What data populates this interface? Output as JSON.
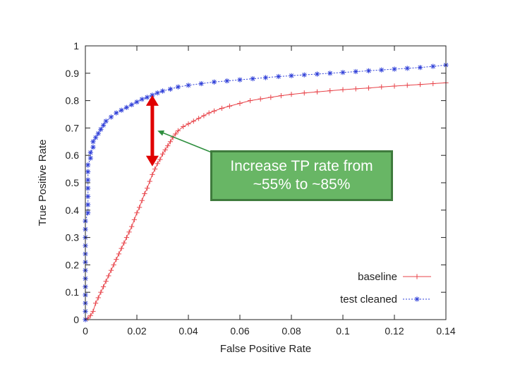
{
  "chart_data": {
    "type": "line",
    "xlabel": "False Positive Rate",
    "ylabel": "True Positive Rate",
    "xlim": [
      0,
      0.14
    ],
    "ylim": [
      0,
      1
    ],
    "xticks": [
      "0",
      "0.02",
      "0.04",
      "0.06",
      "0.08",
      "0.1",
      "0.12",
      "0.14"
    ],
    "yticks": [
      "0",
      "0.1",
      "0.2",
      "0.3",
      "0.4",
      "0.5",
      "0.6",
      "0.7",
      "0.8",
      "0.9",
      "1"
    ],
    "grid": false,
    "legend_position": "bottom-right",
    "series": [
      {
        "name": "baseline",
        "color": "#e8444a",
        "marker": "plus",
        "line": "solid",
        "points": [
          [
            0,
            0
          ],
          [
            0.001,
            0.005
          ],
          [
            0.002,
            0.015
          ],
          [
            0.003,
            0.03
          ],
          [
            0.004,
            0.06
          ],
          [
            0.005,
            0.08
          ],
          [
            0.006,
            0.1
          ],
          [
            0.007,
            0.12
          ],
          [
            0.008,
            0.14
          ],
          [
            0.009,
            0.16
          ],
          [
            0.01,
            0.18
          ],
          [
            0.011,
            0.2
          ],
          [
            0.012,
            0.22
          ],
          [
            0.013,
            0.24
          ],
          [
            0.014,
            0.26
          ],
          [
            0.015,
            0.28
          ],
          [
            0.016,
            0.3
          ],
          [
            0.017,
            0.32
          ],
          [
            0.018,
            0.34
          ],
          [
            0.019,
            0.365
          ],
          [
            0.02,
            0.39
          ],
          [
            0.021,
            0.41
          ],
          [
            0.022,
            0.435
          ],
          [
            0.023,
            0.46
          ],
          [
            0.024,
            0.48
          ],
          [
            0.025,
            0.505
          ],
          [
            0.026,
            0.53
          ],
          [
            0.027,
            0.55
          ],
          [
            0.028,
            0.57
          ],
          [
            0.029,
            0.585
          ],
          [
            0.03,
            0.605
          ],
          [
            0.031,
            0.62
          ],
          [
            0.032,
            0.635
          ],
          [
            0.033,
            0.65
          ],
          [
            0.034,
            0.665
          ],
          [
            0.035,
            0.678
          ],
          [
            0.036,
            0.69
          ],
          [
            0.038,
            0.705
          ],
          [
            0.04,
            0.715
          ],
          [
            0.042,
            0.725
          ],
          [
            0.044,
            0.735
          ],
          [
            0.046,
            0.745
          ],
          [
            0.048,
            0.755
          ],
          [
            0.05,
            0.762
          ],
          [
            0.053,
            0.772
          ],
          [
            0.056,
            0.78
          ],
          [
            0.06,
            0.79
          ],
          [
            0.064,
            0.8
          ],
          [
            0.068,
            0.806
          ],
          [
            0.072,
            0.812
          ],
          [
            0.076,
            0.818
          ],
          [
            0.08,
            0.823
          ],
          [
            0.085,
            0.828
          ],
          [
            0.09,
            0.832
          ],
          [
            0.095,
            0.836
          ],
          [
            0.1,
            0.84
          ],
          [
            0.105,
            0.843
          ],
          [
            0.11,
            0.846
          ],
          [
            0.115,
            0.85
          ],
          [
            0.12,
            0.853
          ],
          [
            0.125,
            0.856
          ],
          [
            0.13,
            0.859
          ],
          [
            0.135,
            0.862
          ],
          [
            0.14,
            0.865
          ]
        ]
      },
      {
        "name": "test cleaned",
        "color": "#2f3fd8",
        "marker": "asterisk",
        "line": "dotted",
        "points": [
          [
            0,
            0
          ],
          [
            0,
            0.03
          ],
          [
            0,
            0.06
          ],
          [
            0,
            0.09
          ],
          [
            0,
            0.12
          ],
          [
            0,
            0.15
          ],
          [
            0,
            0.18
          ],
          [
            0,
            0.21
          ],
          [
            0,
            0.24
          ],
          [
            0,
            0.27
          ],
          [
            0,
            0.3
          ],
          [
            0,
            0.33
          ],
          [
            0,
            0.36
          ],
          [
            0.001,
            0.39
          ],
          [
            0.001,
            0.42
          ],
          [
            0.001,
            0.45
          ],
          [
            0.001,
            0.48
          ],
          [
            0.001,
            0.51
          ],
          [
            0.001,
            0.54
          ],
          [
            0.001,
            0.565
          ],
          [
            0.002,
            0.59
          ],
          [
            0.002,
            0.61
          ],
          [
            0.003,
            0.63
          ],
          [
            0.003,
            0.65
          ],
          [
            0.004,
            0.665
          ],
          [
            0.005,
            0.68
          ],
          [
            0.006,
            0.695
          ],
          [
            0.007,
            0.71
          ],
          [
            0.008,
            0.725
          ],
          [
            0.01,
            0.74
          ],
          [
            0.012,
            0.755
          ],
          [
            0.014,
            0.765
          ],
          [
            0.016,
            0.775
          ],
          [
            0.018,
            0.785
          ],
          [
            0.02,
            0.795
          ],
          [
            0.022,
            0.805
          ],
          [
            0.024,
            0.812
          ],
          [
            0.026,
            0.82
          ],
          [
            0.028,
            0.828
          ],
          [
            0.03,
            0.835
          ],
          [
            0.033,
            0.842
          ],
          [
            0.036,
            0.85
          ],
          [
            0.04,
            0.856
          ],
          [
            0.045,
            0.862
          ],
          [
            0.05,
            0.868
          ],
          [
            0.055,
            0.872
          ],
          [
            0.06,
            0.876
          ],
          [
            0.065,
            0.88
          ],
          [
            0.07,
            0.884
          ],
          [
            0.075,
            0.888
          ],
          [
            0.08,
            0.891
          ],
          [
            0.085,
            0.894
          ],
          [
            0.09,
            0.897
          ],
          [
            0.095,
            0.9
          ],
          [
            0.1,
            0.903
          ],
          [
            0.105,
            0.906
          ],
          [
            0.11,
            0.909
          ],
          [
            0.115,
            0.912
          ],
          [
            0.12,
            0.915
          ],
          [
            0.125,
            0.918
          ],
          [
            0.13,
            0.921
          ],
          [
            0.135,
            0.925
          ],
          [
            0.14,
            0.93
          ]
        ]
      }
    ],
    "annotations": [
      {
        "text_lines": [
          "Increase TP rate from",
          "~55% to ~85%"
        ],
        "box_color": "#68b665",
        "arrow_color": "#2f8f3f",
        "points_to": [
          0.028,
          0.69
        ]
      },
      {
        "type": "double-arrow",
        "color": "#e00000",
        "x": 0.026,
        "from": 0.56,
        "to": 0.82
      }
    ]
  }
}
